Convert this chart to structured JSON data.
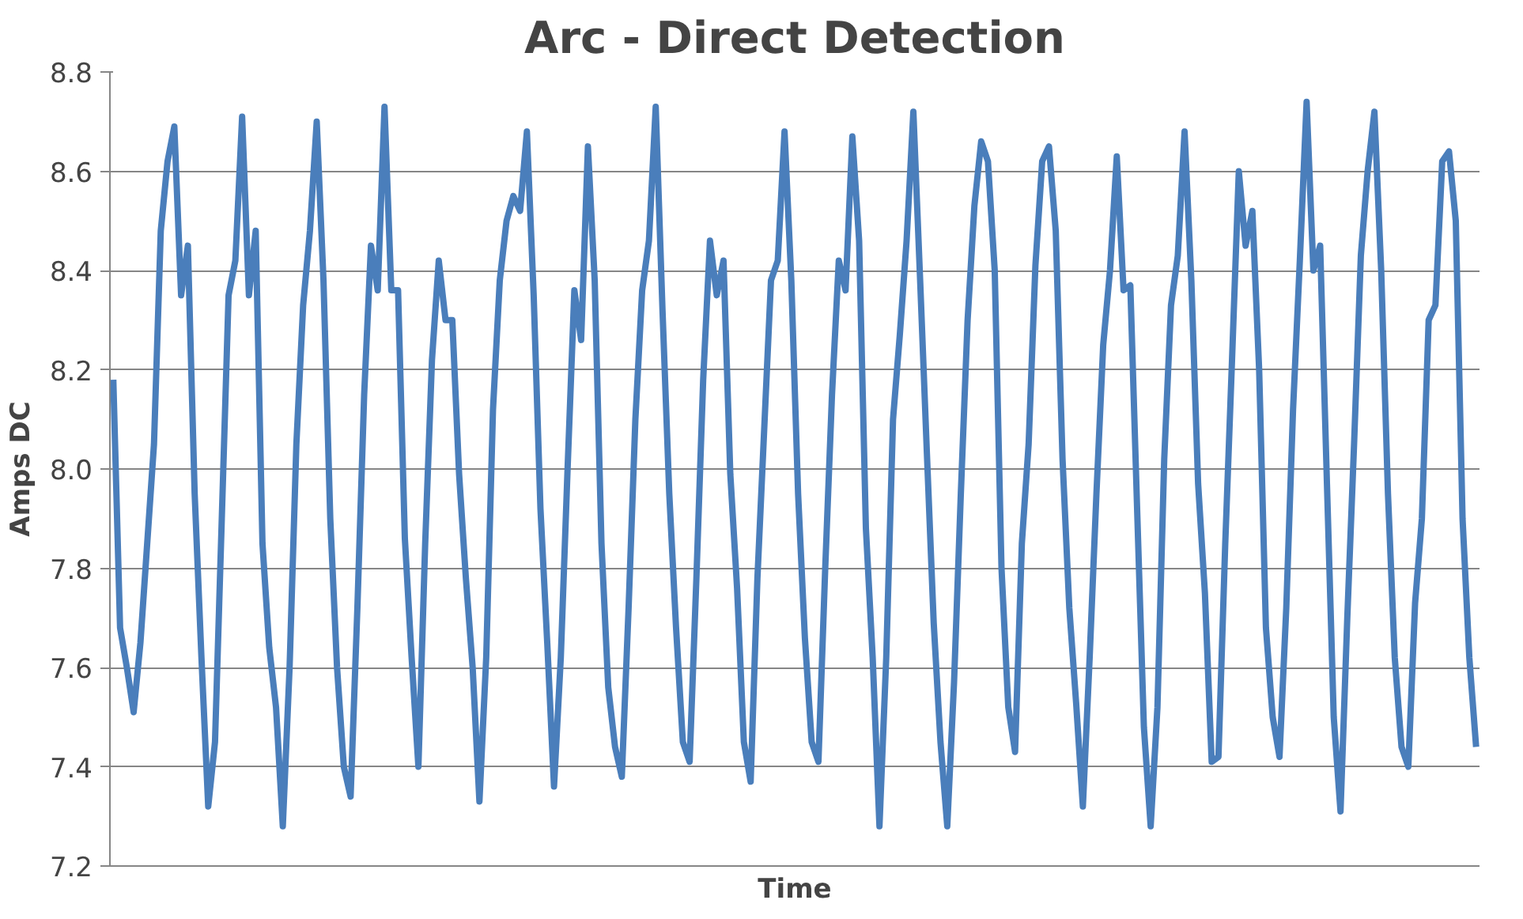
{
  "chart_data": {
    "type": "line",
    "title": "Arc - Direct Detection",
    "xlabel": "Time",
    "ylabel": "Amps DC",
    "categories": [
      null,
      null,
      null,
      null,
      null,
      null,
      null,
      null,
      null,
      null,
      null,
      null,
      null,
      null,
      null,
      null,
      null,
      null,
      null,
      null,
      null,
      null,
      null,
      null,
      null,
      null,
      null,
      null,
      null,
      null,
      null,
      null,
      null,
      null,
      null,
      null,
      null,
      null,
      null,
      null,
      null,
      null,
      null,
      null,
      null,
      null,
      null,
      null,
      null,
      null,
      null,
      null,
      null,
      null,
      null,
      null,
      null,
      null,
      null,
      null,
      null,
      null,
      null,
      null,
      null,
      null,
      null,
      null,
      null,
      null,
      null,
      null,
      null,
      null,
      null,
      null,
      null,
      null,
      null,
      null,
      null,
      null,
      null,
      null,
      null,
      null,
      null,
      null,
      null,
      null,
      null,
      null,
      null,
      null,
      null,
      null,
      null,
      null,
      null,
      null,
      null,
      null,
      null,
      null,
      null,
      null,
      null,
      null,
      null,
      null,
      null,
      null,
      null,
      null,
      null,
      null,
      null,
      null,
      null,
      null,
      null,
      null,
      null,
      null,
      null,
      null,
      null,
      null,
      null,
      null,
      null,
      null,
      null,
      null,
      null,
      null,
      null,
      null,
      null,
      null,
      null,
      null,
      null,
      null,
      null,
      null,
      null,
      null,
      null,
      null,
      null,
      null,
      null,
      null,
      null,
      null,
      null,
      null,
      null,
      null,
      null,
      null,
      null,
      null,
      null,
      null,
      null,
      null,
      null,
      null,
      null,
      null,
      null,
      null,
      null,
      null,
      null,
      null,
      null,
      null,
      null,
      null,
      null,
      null,
      null,
      null,
      null,
      null,
      null,
      null,
      null,
      null,
      null,
      null,
      null,
      null,
      null,
      null,
      null,
      null,
      null,
      null
    ],
    "series": [
      {
        "color": "#4a7ebb",
        "values": [
          8.18,
          7.68,
          7.6,
          7.51,
          7.65,
          7.85,
          8.05,
          8.48,
          8.62,
          8.69,
          8.35,
          8.45,
          7.95,
          7.62,
          7.32,
          7.45,
          7.9,
          8.35,
          8.42,
          8.71,
          8.35,
          8.48,
          7.85,
          7.64,
          7.52,
          7.28,
          7.6,
          8.05,
          8.33,
          8.48,
          8.7,
          8.38,
          7.9,
          7.6,
          7.4,
          7.34,
          7.72,
          8.15,
          8.45,
          8.36,
          8.73,
          8.36,
          8.36,
          7.86,
          7.62,
          7.4,
          7.85,
          8.22,
          8.42,
          8.3,
          8.3,
          7.99,
          7.78,
          7.6,
          7.33,
          7.62,
          8.12,
          8.38,
          8.5,
          8.55,
          8.52,
          8.68,
          8.35,
          7.92,
          7.65,
          7.36,
          7.62,
          8.0,
          8.36,
          8.26,
          8.65,
          8.38,
          7.85,
          7.56,
          7.44,
          7.38,
          7.72,
          8.1,
          8.36,
          8.46,
          8.73,
          8.32,
          7.95,
          7.68,
          7.45,
          7.41,
          7.78,
          8.18,
          8.46,
          8.35,
          8.42,
          7.99,
          7.76,
          7.45,
          7.37,
          7.78,
          8.08,
          8.38,
          8.42,
          8.68,
          8.38,
          7.95,
          7.66,
          7.45,
          7.41,
          7.8,
          8.15,
          8.42,
          8.36,
          8.67,
          8.46,
          7.88,
          7.62,
          7.28,
          7.62,
          8.1,
          8.27,
          8.46,
          8.72,
          8.38,
          8.03,
          7.69,
          7.45,
          7.28,
          7.57,
          7.95,
          8.3,
          8.53,
          8.66,
          8.62,
          8.4,
          7.8,
          7.52,
          7.43,
          7.85,
          8.05,
          8.41,
          8.62,
          8.65,
          8.48,
          8.02,
          7.72,
          7.53,
          7.32,
          7.62,
          7.95,
          8.25,
          8.4,
          8.63,
          8.36,
          8.37,
          7.92,
          7.48,
          7.28,
          7.52,
          8.02,
          8.33,
          8.43,
          8.68,
          8.38,
          7.97,
          7.75,
          7.41,
          7.42,
          7.85,
          8.22,
          8.6,
          8.45,
          8.52,
          8.2,
          7.68,
          7.5,
          7.42,
          7.72,
          8.12,
          8.42,
          8.74,
          8.4,
          8.45,
          7.97,
          7.5,
          7.31,
          7.7,
          8.05,
          8.43,
          8.6,
          8.72,
          8.4,
          7.95,
          7.62,
          7.44,
          7.4,
          7.73,
          7.9,
          8.3,
          8.33,
          8.62,
          8.64,
          8.5,
          7.9,
          7.62,
          7.44
        ]
      }
    ],
    "ylim": [
      7.2,
      8.8
    ],
    "yticks": [
      {
        "value": 7.2,
        "label": "7.2"
      },
      {
        "value": 7.4,
        "label": "7.4"
      },
      {
        "value": 7.6,
        "label": "7.6"
      },
      {
        "value": 7.8,
        "label": "7.8"
      },
      {
        "value": 8.0,
        "label": "8.0"
      },
      {
        "value": 8.2,
        "label": "8.2"
      },
      {
        "value": 8.4,
        "label": "8.4"
      },
      {
        "value": 8.6,
        "label": "8.6"
      },
      {
        "value": 8.8,
        "label": "8.8"
      }
    ],
    "grid": "y",
    "tick_labels": "y",
    "marker": "none",
    "line_style": "solid"
  }
}
